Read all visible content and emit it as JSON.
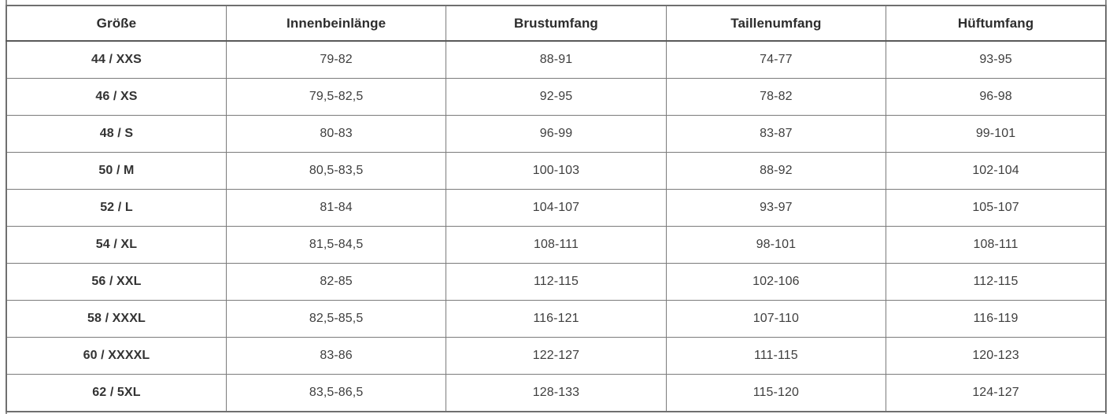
{
  "table": {
    "columns": [
      "Größe",
      "Innenbeinlänge",
      "Brustumfang",
      "Taillenumfang",
      "Hüftumfang"
    ],
    "rows": [
      [
        "44 / XXS",
        "79-82",
        "88-91",
        "74-77",
        "93-95"
      ],
      [
        "46 / XS",
        "79,5-82,5",
        "92-95",
        "78-82",
        "96-98"
      ],
      [
        "48 / S",
        "80-83",
        "96-99",
        "83-87",
        "99-101"
      ],
      [
        "50 / M",
        "80,5-83,5",
        "100-103",
        "88-92",
        "102-104"
      ],
      [
        "52 / L",
        "81-84",
        "104-107",
        "93-97",
        "105-107"
      ],
      [
        "54 / XL",
        "81,5-84,5",
        "108-111",
        "98-101",
        "108-111"
      ],
      [
        "56 / XXL",
        "82-85",
        "112-115",
        "102-106",
        "112-115"
      ],
      [
        "58 / XXXL",
        "82,5-85,5",
        "116-121",
        "107-110",
        "116-119"
      ],
      [
        "60 / XXXXL",
        "83-86",
        "122-127",
        "111-115",
        "120-123"
      ],
      [
        "62 / 5XL",
        "83,5-86,5",
        "128-133",
        "115-120",
        "124-127"
      ]
    ]
  },
  "chart_data": {
    "type": "table",
    "columns": [
      "Größe",
      "Innenbeinlänge",
      "Brustumfang",
      "Taillenumfang",
      "Hüftumfang"
    ],
    "rows": [
      [
        "44 / XXS",
        "79-82",
        "88-91",
        "74-77",
        "93-95"
      ],
      [
        "46 / XS",
        "79,5-82,5",
        "92-95",
        "78-82",
        "96-98"
      ],
      [
        "48 / S",
        "80-83",
        "96-99",
        "83-87",
        "99-101"
      ],
      [
        "50 / M",
        "80,5-83,5",
        "100-103",
        "88-92",
        "102-104"
      ],
      [
        "52 / L",
        "81-84",
        "104-107",
        "93-97",
        "105-107"
      ],
      [
        "54 / XL",
        "81,5-84,5",
        "108-111",
        "98-101",
        "108-111"
      ],
      [
        "56 / XXL",
        "82-85",
        "112-115",
        "102-106",
        "112-115"
      ],
      [
        "58 / XXXL",
        "82,5-85,5",
        "116-121",
        "107-110",
        "116-119"
      ],
      [
        "60 / XXXXL",
        "83-86",
        "122-127",
        "111-115",
        "120-123"
      ],
      [
        "62 / 5XL",
        "83,5-86,5",
        "128-133",
        "115-120",
        "124-127"
      ]
    ],
    "legend": "none",
    "grid": "full table borders"
  },
  "colors": {
    "background": "#ffffff",
    "border": "#7b7b7b",
    "outer_border": "#6f6f6f",
    "header_bottom_border": "#595959",
    "header_text": "#2d2d2d",
    "cell_text": "#3e3e3e",
    "size_cell_text": "#333333"
  }
}
